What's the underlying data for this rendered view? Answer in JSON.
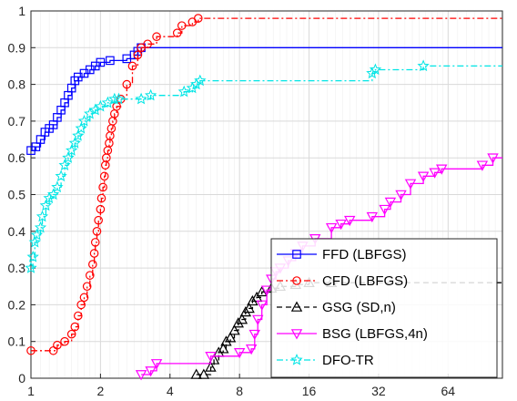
{
  "chart_data": {
    "type": "line",
    "title": "",
    "xlabel": "",
    "ylabel": "",
    "xscale": "log2",
    "xlim": [
      1,
      110
    ],
    "ylim": [
      0,
      1
    ],
    "grid": true,
    "legend_position": "bottom-right",
    "x_ticks": [
      1,
      2,
      4,
      8,
      16,
      32,
      64
    ],
    "y_ticks": [
      0,
      0.1,
      0.2,
      0.3,
      0.4,
      0.5,
      0.6,
      0.7,
      0.8,
      0.9,
      1
    ],
    "x_tick_labels": [
      "1",
      "2",
      "4",
      "8",
      "16",
      "32",
      "64"
    ],
    "y_tick_labels": [
      "0",
      "0.1",
      "0.2",
      "0.3",
      "0.4",
      "0.5",
      "0.6",
      "0.7",
      "0.8",
      "0.9",
      "1"
    ],
    "series": [
      {
        "name": "FFD (LBFGS)",
        "color": "#0000ff",
        "dash": "solid",
        "marker": "square",
        "points": [
          [
            1,
            0.62
          ],
          [
            1.05,
            0.63
          ],
          [
            1.1,
            0.65
          ],
          [
            1.15,
            0.67
          ],
          [
            1.2,
            0.68
          ],
          [
            1.25,
            0.69
          ],
          [
            1.3,
            0.71
          ],
          [
            1.35,
            0.73
          ],
          [
            1.4,
            0.75
          ],
          [
            1.45,
            0.77
          ],
          [
            1.5,
            0.79
          ],
          [
            1.55,
            0.81
          ],
          [
            1.6,
            0.82
          ],
          [
            1.7,
            0.83
          ],
          [
            1.8,
            0.84
          ],
          [
            1.9,
            0.85
          ],
          [
            2.0,
            0.86
          ],
          [
            2.2,
            0.865
          ],
          [
            2.6,
            0.87
          ],
          [
            2.8,
            0.88
          ],
          [
            2.9,
            0.89
          ],
          [
            3.0,
            0.9
          ],
          [
            110,
            0.9
          ]
        ]
      },
      {
        "name": "CFD (LBFGS)",
        "color": "#ff0000",
        "dash": "dashdot",
        "marker": "circle",
        "points": [
          [
            1,
            0.075
          ],
          [
            1.25,
            0.075
          ],
          [
            1.3,
            0.09
          ],
          [
            1.4,
            0.1
          ],
          [
            1.5,
            0.12
          ],
          [
            1.55,
            0.14
          ],
          [
            1.6,
            0.17
          ],
          [
            1.65,
            0.2
          ],
          [
            1.7,
            0.22
          ],
          [
            1.75,
            0.25
          ],
          [
            1.8,
            0.28
          ],
          [
            1.85,
            0.31
          ],
          [
            1.88,
            0.34
          ],
          [
            1.9,
            0.37
          ],
          [
            1.93,
            0.4
          ],
          [
            1.96,
            0.43
          ],
          [
            2.0,
            0.46
          ],
          [
            2.02,
            0.49
          ],
          [
            2.05,
            0.52
          ],
          [
            2.08,
            0.55
          ],
          [
            2.1,
            0.58
          ],
          [
            2.12,
            0.6
          ],
          [
            2.15,
            0.62
          ],
          [
            2.18,
            0.64
          ],
          [
            2.2,
            0.66
          ],
          [
            2.23,
            0.68
          ],
          [
            2.26,
            0.7
          ],
          [
            2.3,
            0.72
          ],
          [
            2.35,
            0.74
          ],
          [
            2.45,
            0.76
          ],
          [
            2.6,
            0.8
          ],
          [
            2.75,
            0.85
          ],
          [
            2.9,
            0.88
          ],
          [
            3.0,
            0.9
          ],
          [
            3.2,
            0.91
          ],
          [
            3.5,
            0.93
          ],
          [
            4.3,
            0.94
          ],
          [
            4.5,
            0.96
          ],
          [
            5.0,
            0.97
          ],
          [
            5.3,
            0.98
          ],
          [
            110,
            0.98
          ]
        ]
      },
      {
        "name": "GSG (SD,n)",
        "color": "#000000",
        "dash": "dashed",
        "marker": "triangle",
        "points": [
          [
            5.2,
            0.01
          ],
          [
            5.6,
            0.01
          ],
          [
            6.0,
            0.03
          ],
          [
            6.2,
            0.05
          ],
          [
            6.5,
            0.07
          ],
          [
            6.8,
            0.08
          ],
          [
            7.0,
            0.1
          ],
          [
            7.3,
            0.11
          ],
          [
            7.6,
            0.13
          ],
          [
            7.9,
            0.15
          ],
          [
            8.2,
            0.16
          ],
          [
            8.5,
            0.18
          ],
          [
            8.8,
            0.19
          ],
          [
            9.1,
            0.21
          ],
          [
            9.5,
            0.22
          ],
          [
            10,
            0.235
          ],
          [
            11,
            0.245
          ],
          [
            12,
            0.25
          ],
          [
            14,
            0.255
          ],
          [
            16,
            0.26
          ],
          [
            20,
            0.26
          ],
          [
            110,
            0.26
          ]
        ]
      },
      {
        "name": "BSG (LBFGS,4n)",
        "color": "#ff00ff",
        "dash": "solid",
        "marker": "triangle-down",
        "points": [
          [
            3,
            0.01
          ],
          [
            3.3,
            0.02
          ],
          [
            3.5,
            0.04
          ],
          [
            6,
            0.06
          ],
          [
            8,
            0.07
          ],
          [
            9,
            0.08
          ],
          [
            9.3,
            0.12
          ],
          [
            9.6,
            0.16
          ],
          [
            10,
            0.2
          ],
          [
            10.5,
            0.24
          ],
          [
            11,
            0.27
          ],
          [
            11.5,
            0.29
          ],
          [
            12,
            0.3
          ],
          [
            13,
            0.32
          ],
          [
            14,
            0.34
          ],
          [
            15,
            0.36
          ],
          [
            17,
            0.38
          ],
          [
            20,
            0.41
          ],
          [
            22,
            0.42
          ],
          [
            24,
            0.43
          ],
          [
            30,
            0.44
          ],
          [
            34,
            0.46
          ],
          [
            36,
            0.48
          ],
          [
            40,
            0.5
          ],
          [
            44,
            0.53
          ],
          [
            50,
            0.55
          ],
          [
            56,
            0.56
          ],
          [
            60,
            0.57
          ],
          [
            90,
            0.58
          ],
          [
            100,
            0.6
          ],
          [
            110,
            0.6
          ]
        ]
      },
      {
        "name": "DFO-TR",
        "color": "#00e5e5",
        "dash": "dashdot",
        "marker": "star",
        "points": [
          [
            1,
            0.3
          ],
          [
            1.02,
            0.33
          ],
          [
            1.04,
            0.37
          ],
          [
            1.06,
            0.39
          ],
          [
            1.1,
            0.41
          ],
          [
            1.12,
            0.44
          ],
          [
            1.16,
            0.47
          ],
          [
            1.2,
            0.49
          ],
          [
            1.25,
            0.5
          ],
          [
            1.3,
            0.52
          ],
          [
            1.35,
            0.55
          ],
          [
            1.4,
            0.58
          ],
          [
            1.45,
            0.6
          ],
          [
            1.5,
            0.62
          ],
          [
            1.55,
            0.64
          ],
          [
            1.6,
            0.66
          ],
          [
            1.65,
            0.68
          ],
          [
            1.7,
            0.7
          ],
          [
            1.8,
            0.72
          ],
          [
            1.9,
            0.73
          ],
          [
            2.0,
            0.74
          ],
          [
            2.15,
            0.75
          ],
          [
            2.3,
            0.76
          ],
          [
            2.4,
            0.76
          ],
          [
            3.0,
            0.76
          ],
          [
            3.3,
            0.77
          ],
          [
            4.6,
            0.78
          ],
          [
            5.0,
            0.79
          ],
          [
            5.2,
            0.8
          ],
          [
            5.4,
            0.81
          ],
          [
            30,
            0.83
          ],
          [
            31,
            0.84
          ],
          [
            50,
            0.85
          ],
          [
            110,
            0.85
          ]
        ]
      }
    ]
  }
}
